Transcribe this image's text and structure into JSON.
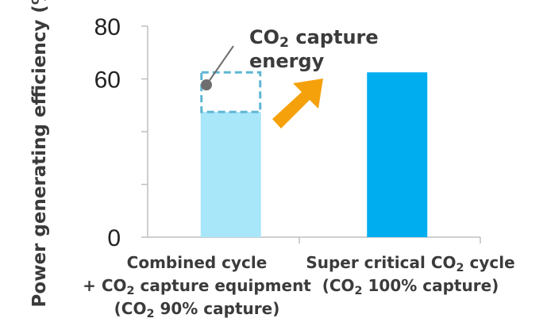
{
  "chart_data": {
    "type": "bar",
    "ylabel": "Power generating efficiency (%)",
    "ylim": [
      0,
      80
    ],
    "y_ticks": [
      0,
      20,
      40,
      60,
      80
    ],
    "y_tick_labels": [
      "0",
      "",
      "",
      "60",
      "80"
    ],
    "categories": [
      {
        "lines": [
          [
            {
              "t": "Combined cycle"
            }
          ],
          [
            {
              "t": "+ CO"
            },
            {
              "t": "2",
              "sub": true
            },
            {
              "t": " capture equipment"
            }
          ],
          [
            {
              "t": "(CO"
            },
            {
              "t": "2",
              "sub": true
            },
            {
              "t": " 90% capture)"
            }
          ]
        ]
      },
      {
        "lines": [
          [
            {
              "t": "Super critical CO"
            },
            {
              "t": "2",
              "sub": true
            },
            {
              "t": " cycle"
            }
          ],
          [
            {
              "t": "(CO"
            },
            {
              "t": "2",
              "sub": true
            },
            {
              "t": " 100% capture)"
            }
          ]
        ]
      }
    ],
    "values": [
      47.5,
      62.5
    ],
    "capture_energy_loss": {
      "category_index": 0,
      "from": 47.5,
      "to": 62.5,
      "label_lines": [
        [
          {
            "t": "CO"
          },
          {
            "t": "2",
            "sub": true
          },
          {
            "t": " capture"
          }
        ],
        [
          {
            "t": "energy"
          }
        ]
      ]
    },
    "colors": {
      "bar_1": "#a8e6fa",
      "bar_2": "#00aeef",
      "loss_outline": "#5fb6d4",
      "arrow": "#f5a10c",
      "pointer": "#6e6e6e",
      "axis": "#bfbfbf"
    }
  }
}
